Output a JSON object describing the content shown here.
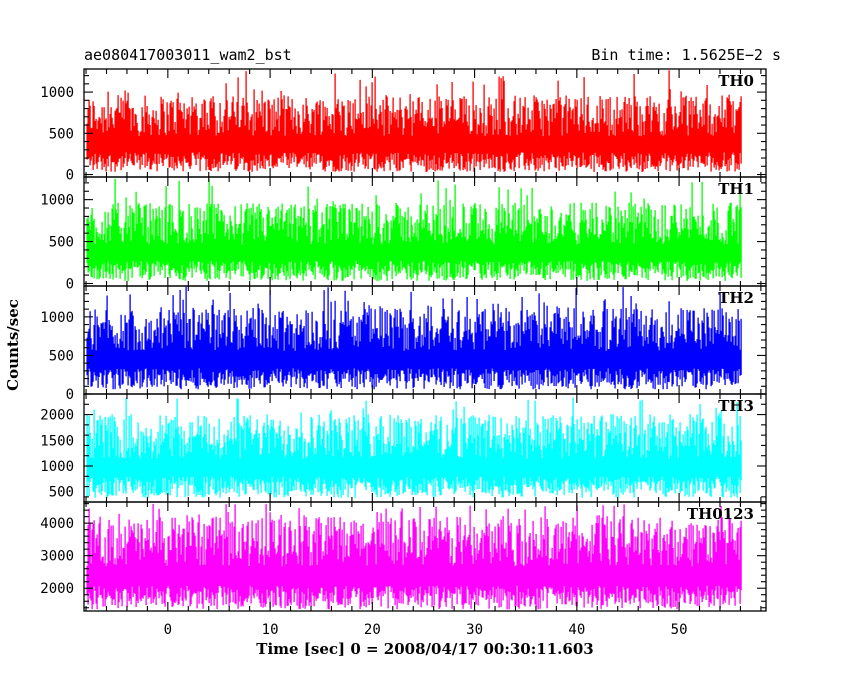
{
  "title_left": "ae080417003011_wam2_bst",
  "title_right": "Bin time: 1.5625E−2 s",
  "chart_data": {
    "type": "line",
    "xlabel": "Time [sec] 0 = 2008/04/17 00:30:11.603",
    "ylabel": "Counts/sec",
    "xlim": [
      -8.2,
      58.5
    ],
    "xticks": [
      0,
      10,
      20,
      30,
      40,
      50
    ],
    "data_x_range": [
      -7.9,
      56.1
    ],
    "panels": [
      {
        "name": "TH0",
        "color": "#ff0000",
        "ylim": [
          -30,
          1280
        ],
        "yticks": [
          0,
          500,
          1000
        ],
        "base": 30,
        "typical_top": 900,
        "max": 1270
      },
      {
        "name": "TH1",
        "color": "#00ff00",
        "ylim": [
          -30,
          1270
        ],
        "yticks": [
          0,
          500,
          1000
        ],
        "base": 30,
        "typical_top": 900,
        "max": 1260
      },
      {
        "name": "TH2",
        "color": "#0000ff",
        "ylim": [
          0,
          1400
        ],
        "yticks": [
          0,
          500,
          1000
        ],
        "base": 60,
        "typical_top": 1050,
        "max": 1400
      },
      {
        "name": "TH3",
        "color": "#00ffff",
        "ylim": [
          300,
          2400
        ],
        "yticks": [
          500,
          1000,
          1500,
          2000
        ],
        "base": 380,
        "typical_top": 1900,
        "max": 2350
      },
      {
        "name": "TH0123",
        "color": "#ff00ff",
        "ylim": [
          1300,
          4650
        ],
        "yticks": [
          2000,
          3000,
          4000
        ],
        "base": 1350,
        "typical_top": 4000,
        "max": 4600
      }
    ]
  }
}
